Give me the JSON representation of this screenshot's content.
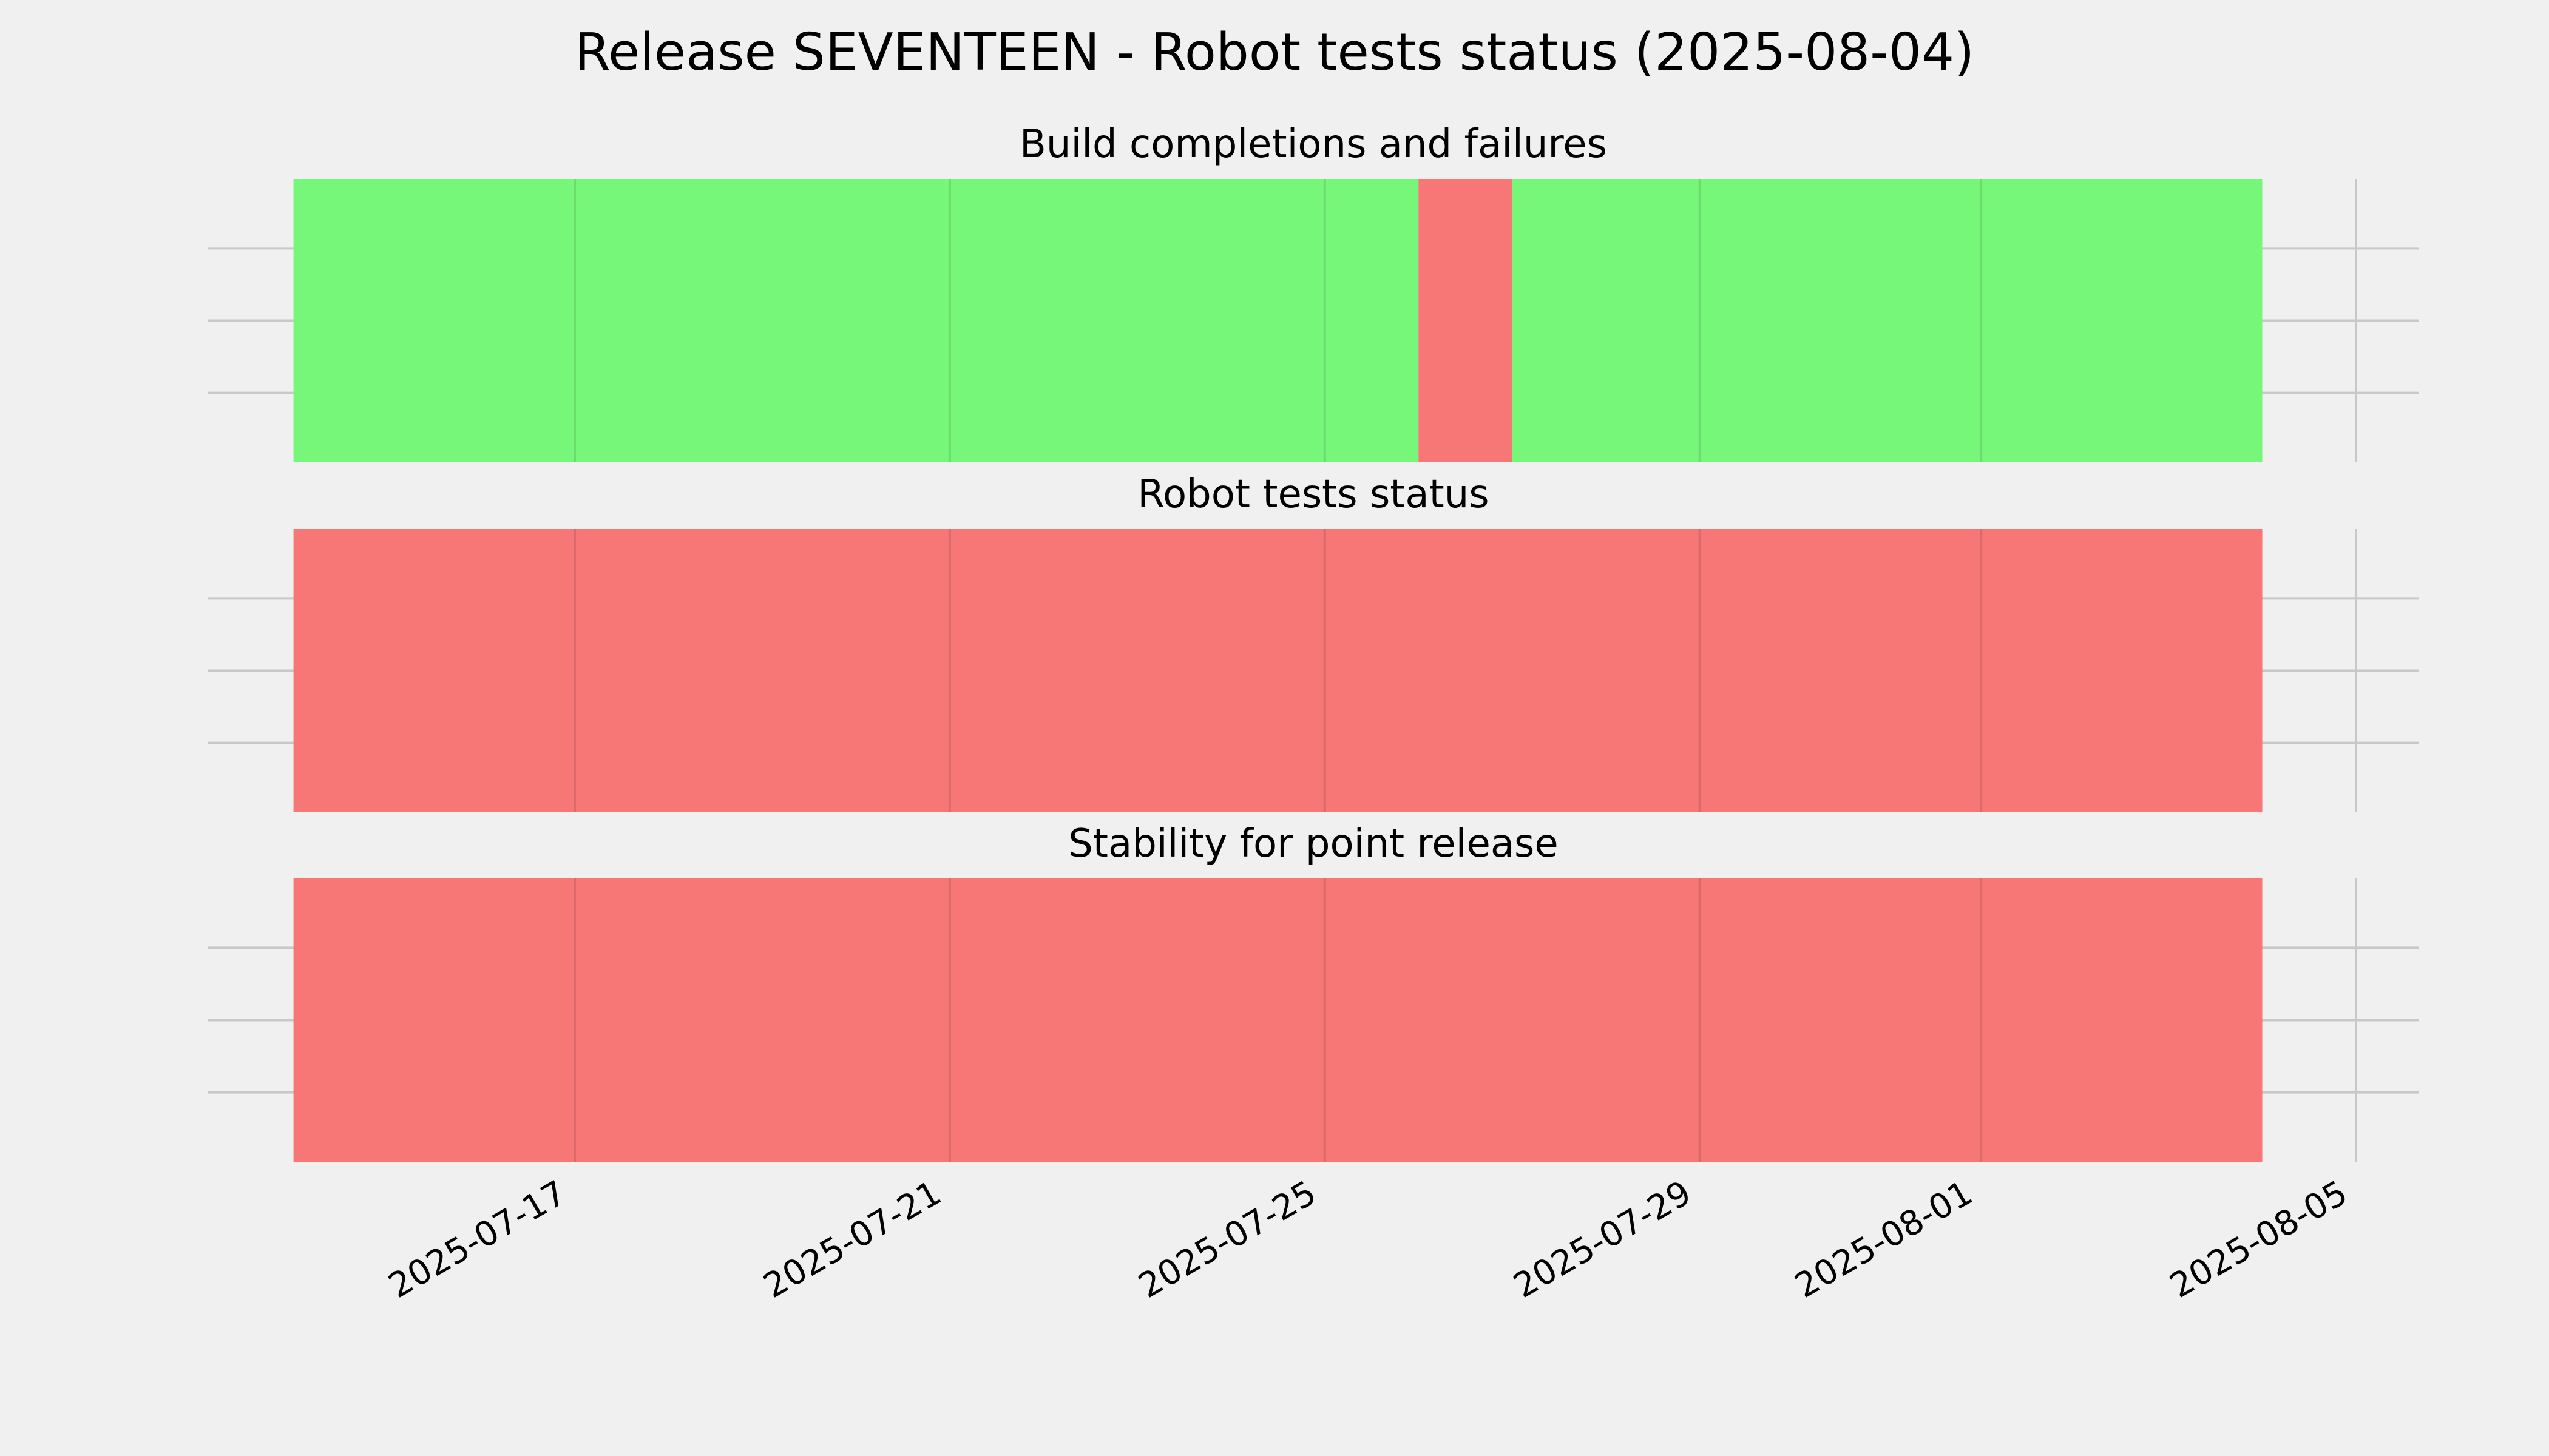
{
  "chart_data": {
    "type": "timeline",
    "title": "Release SEVENTEEN - Robot tests status (2025-08-04)",
    "x_axis": {
      "type": "date",
      "range": [
        "2025-07-14",
        "2025-08-05"
      ],
      "ticks": [
        "2025-07-17",
        "2025-07-21",
        "2025-07-25",
        "2025-07-29",
        "2025-08-01",
        "2025-08-05"
      ]
    },
    "colors": {
      "pass": "#77f77a",
      "fail": "#f77676",
      "background": "#f0f0f0"
    },
    "panels": [
      {
        "title": "Build completions and failures",
        "segments": [
          {
            "start": "2025-07-14",
            "end": "2025-07-26",
            "status": "pass"
          },
          {
            "start": "2025-07-26",
            "end": "2025-07-27",
            "status": "fail"
          },
          {
            "start": "2025-07-27",
            "end": "2025-08-04",
            "status": "pass"
          }
        ]
      },
      {
        "title": "Robot tests status",
        "segments": [
          {
            "start": "2025-07-14",
            "end": "2025-08-04",
            "status": "fail"
          }
        ]
      },
      {
        "title": "Stability for point release",
        "segments": [
          {
            "start": "2025-07-14",
            "end": "2025-08-04",
            "status": "fail"
          }
        ]
      }
    ]
  }
}
